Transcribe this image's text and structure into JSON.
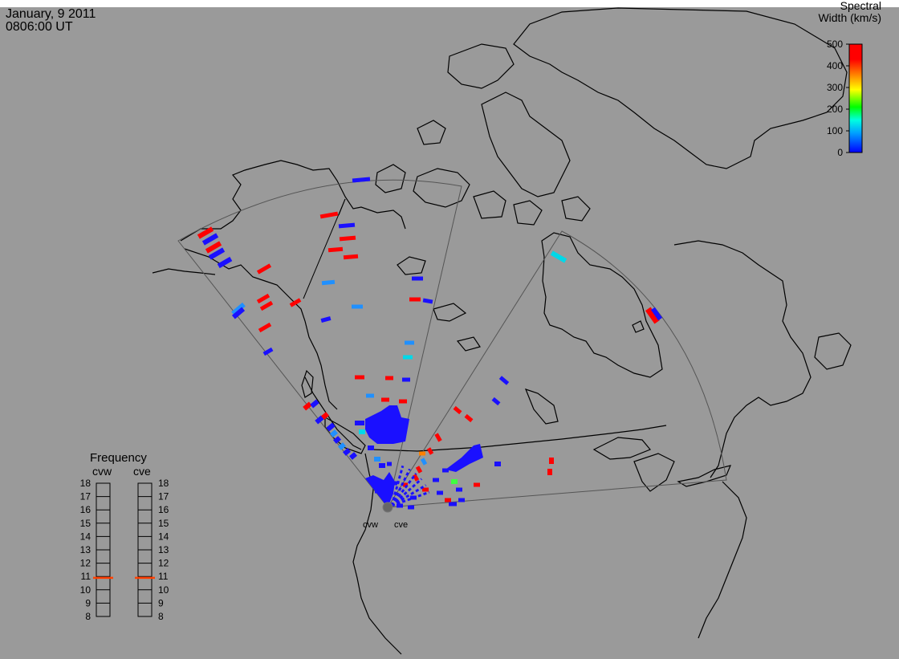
{
  "header": {
    "date": "January, 9 2011",
    "time": "0806:00 UT"
  },
  "colorbar": {
    "title_line1": "Spectral",
    "title_line2": "Width (km/s)",
    "ticks": [
      "500",
      "400",
      "300",
      "200",
      "100",
      "0"
    ],
    "range": [
      0,
      500
    ],
    "colors": [
      "#0000ff",
      "#00a0ff",
      "#00ffe0",
      "#00ff00",
      "#ffff00",
      "#ff8000",
      "#ff0000"
    ]
  },
  "radars": {
    "west_label": "cvw",
    "east_label": "cve"
  },
  "frequency_panel": {
    "title": "Frequency",
    "col_left": "cvw",
    "col_right": "cve",
    "ticks": [
      "18",
      "17",
      "16",
      "15",
      "14",
      "13",
      "12",
      "11",
      "10",
      "9",
      "8"
    ],
    "range": [
      8,
      18
    ],
    "cvw_value": 10.9,
    "cve_value": 10.9,
    "marker_color": "#ff4000"
  },
  "colors": {
    "background": "#9a9a9a",
    "coastline": "#000000",
    "fov_outline": "#555555",
    "scatter_red": "#ff0000",
    "scatter_blue": "#1a10ff",
    "scatter_cyan": "#00d8e8",
    "scatter_light_blue": "#2090ff"
  }
}
